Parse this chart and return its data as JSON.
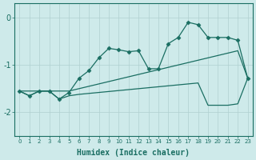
{
  "xlabel": "Humidex (Indice chaleur)",
  "background_color": "#ceeaea",
  "grid_color": "#b0d0d0",
  "line_color": "#1a6e62",
  "xlim": [
    -0.5,
    23.5
  ],
  "ylim": [
    -2.5,
    0.3
  ],
  "yticks": [
    0,
    -1,
    -2
  ],
  "xticks": [
    0,
    1,
    2,
    3,
    4,
    5,
    6,
    7,
    8,
    9,
    10,
    11,
    12,
    13,
    14,
    15,
    16,
    17,
    18,
    19,
    20,
    21,
    22,
    23
  ],
  "series": [
    {
      "x": [
        0,
        1,
        2,
        3,
        4,
        5,
        6,
        7,
        8,
        9,
        10,
        11,
        12,
        13,
        14,
        15,
        16,
        17,
        18,
        19,
        20,
        21,
        22,
        23
      ],
      "y": [
        -1.55,
        -1.65,
        -1.55,
        -1.55,
        -1.72,
        -1.58,
        -1.28,
        -1.12,
        -0.85,
        -0.65,
        -0.68,
        -0.72,
        -0.7,
        -1.08,
        -1.08,
        -0.55,
        -0.42,
        -0.1,
        -0.15,
        -0.42,
        -0.42,
        -0.42,
        -0.48,
        -1.28
      ],
      "marker": "D",
      "markersize": 2.5,
      "linewidth": 0.9
    },
    {
      "x": [
        0,
        2,
        3,
        4,
        5,
        6,
        7,
        8,
        9,
        10,
        11,
        12,
        13,
        14,
        15,
        16,
        17,
        18,
        19,
        20,
        21,
        22,
        23
      ],
      "y": [
        -1.55,
        -1.55,
        -1.55,
        -1.55,
        -1.55,
        -1.5,
        -1.45,
        -1.4,
        -1.35,
        -1.3,
        -1.25,
        -1.2,
        -1.15,
        -1.1,
        -1.05,
        -1.0,
        -0.95,
        -0.9,
        -0.85,
        -0.8,
        -0.75,
        -0.7,
        -1.28
      ],
      "marker": null,
      "linewidth": 0.9
    },
    {
      "x": [
        0,
        1,
        2,
        3,
        4,
        5,
        6,
        7,
        8,
        9,
        10,
        11,
        12,
        13,
        14,
        15,
        16,
        17,
        18,
        19,
        20,
        21,
        22,
        23
      ],
      "y": [
        -1.55,
        -1.65,
        -1.55,
        -1.55,
        -1.72,
        -1.65,
        -1.62,
        -1.6,
        -1.58,
        -1.56,
        -1.54,
        -1.52,
        -1.5,
        -1.48,
        -1.46,
        -1.44,
        -1.42,
        -1.4,
        -1.38,
        -1.85,
        -1.85,
        -1.85,
        -1.82,
        -1.28
      ],
      "marker": null,
      "linewidth": 0.9
    }
  ]
}
